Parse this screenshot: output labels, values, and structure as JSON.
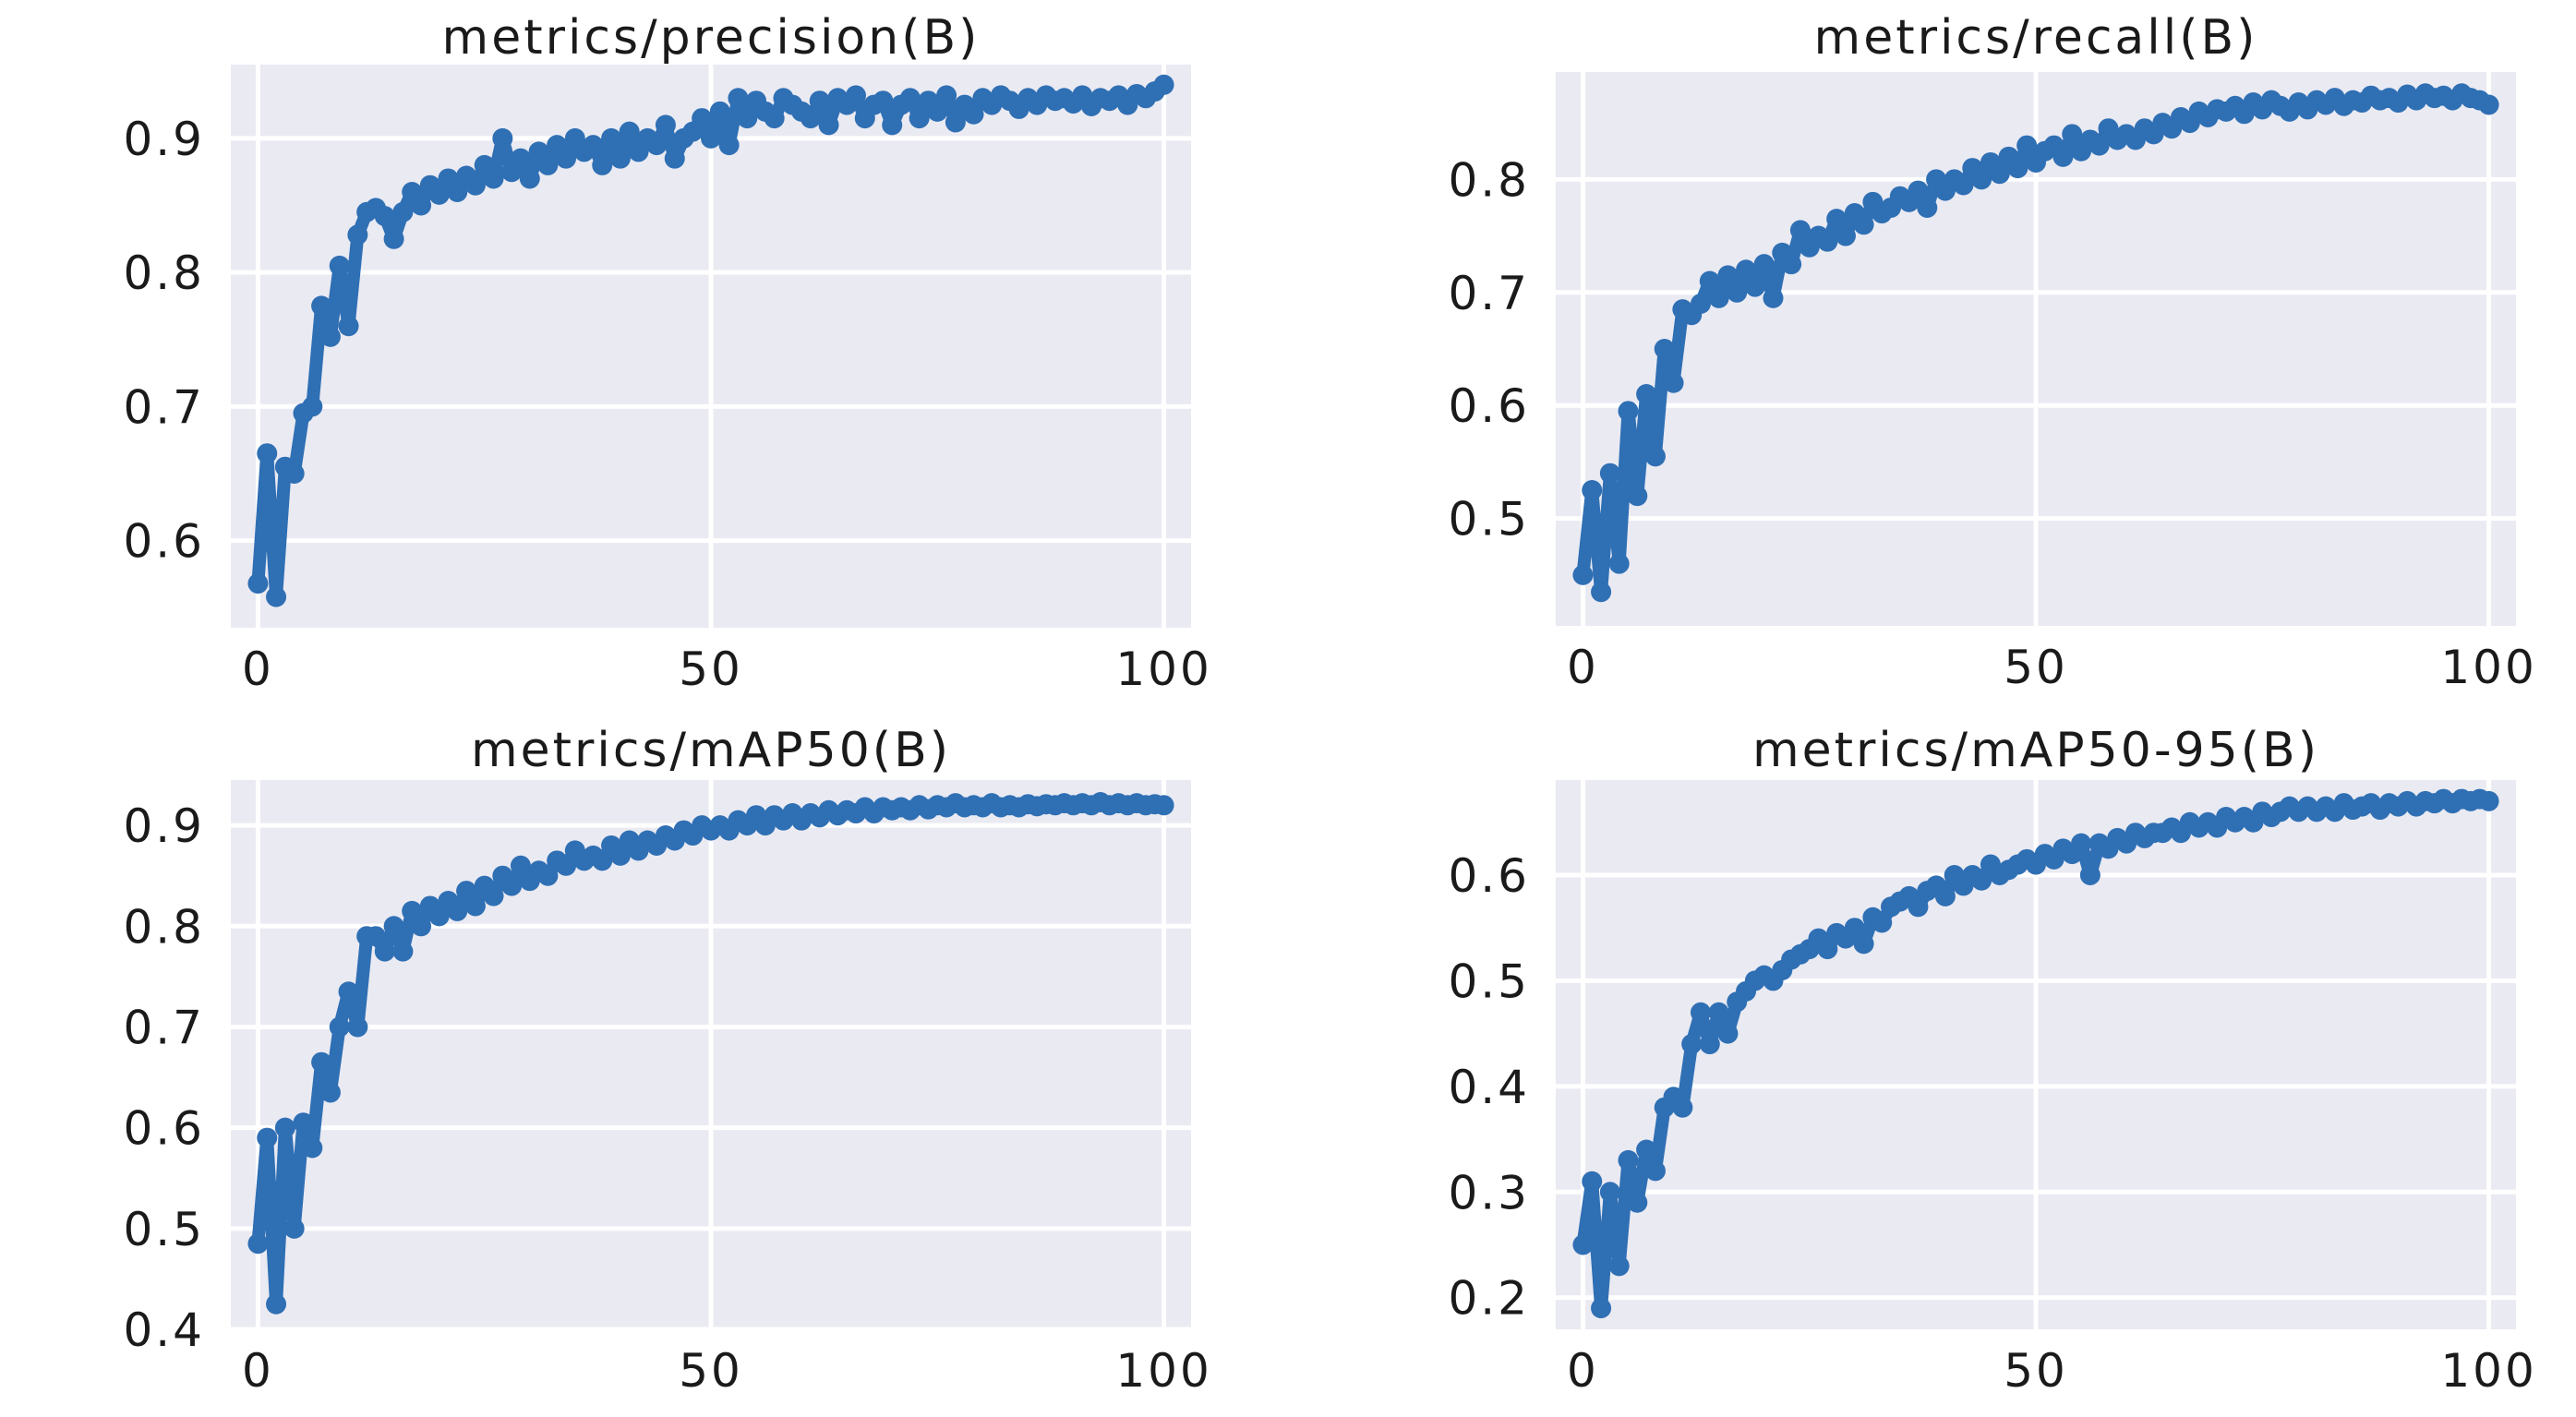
{
  "figure": {
    "background": "#ffffff",
    "plot_background": "#eaeaf2",
    "grid_color": "#ffffff",
    "series_color": "#2f6fb4"
  },
  "chart_data": [
    {
      "type": "line",
      "title": "metrics/precision(B)",
      "xlabel": "",
      "ylabel": "",
      "xlim": [
        -3,
        103
      ],
      "ylim": [
        0.535,
        0.955
      ],
      "xticks": [
        0,
        50,
        100
      ],
      "xtick_labels": [
        "0",
        "50",
        "100"
      ],
      "yticks": [
        0.6,
        0.7,
        0.8,
        0.9
      ],
      "ytick_labels": [
        "0.6",
        "0.7",
        "0.8",
        "0.9"
      ],
      "grid": true,
      "markers": true,
      "x": [
        0,
        1,
        2,
        3,
        4,
        5,
        6,
        7,
        8,
        9,
        10,
        11,
        12,
        13,
        14,
        15,
        16,
        17,
        18,
        19,
        20,
        21,
        22,
        23,
        24,
        25,
        26,
        27,
        28,
        29,
        30,
        31,
        32,
        33,
        34,
        35,
        36,
        37,
        38,
        39,
        40,
        41,
        42,
        43,
        44,
        45,
        46,
        47,
        48,
        49,
        50,
        51,
        52,
        53,
        54,
        55,
        56,
        57,
        58,
        59,
        60,
        61,
        62,
        63,
        64,
        65,
        66,
        67,
        68,
        69,
        70,
        71,
        72,
        73,
        74,
        75,
        76,
        77,
        78,
        79,
        80,
        81,
        82,
        83,
        84,
        85,
        86,
        87,
        88,
        89,
        90,
        91,
        92,
        93,
        94,
        95,
        96,
        97,
        98,
        99,
        100
      ],
      "y": [
        0.568,
        0.665,
        0.558,
        0.655,
        0.65,
        0.695,
        0.7,
        0.775,
        0.752,
        0.805,
        0.76,
        0.828,
        0.845,
        0.848,
        0.842,
        0.825,
        0.845,
        0.86,
        0.85,
        0.865,
        0.858,
        0.87,
        0.86,
        0.872,
        0.865,
        0.88,
        0.87,
        0.9,
        0.875,
        0.885,
        0.87,
        0.89,
        0.88,
        0.895,
        0.885,
        0.9,
        0.89,
        0.895,
        0.88,
        0.9,
        0.885,
        0.905,
        0.89,
        0.9,
        0.895,
        0.91,
        0.885,
        0.9,
        0.905,
        0.915,
        0.9,
        0.92,
        0.895,
        0.93,
        0.915,
        0.928,
        0.92,
        0.915,
        0.93,
        0.925,
        0.92,
        0.915,
        0.928,
        0.91,
        0.93,
        0.925,
        0.932,
        0.915,
        0.925,
        0.928,
        0.91,
        0.925,
        0.93,
        0.915,
        0.928,
        0.92,
        0.932,
        0.912,
        0.925,
        0.918,
        0.93,
        0.925,
        0.932,
        0.928,
        0.922,
        0.93,
        0.925,
        0.932,
        0.928,
        0.93,
        0.926,
        0.932,
        0.924,
        0.93,
        0.928,
        0.932,
        0.925,
        0.933,
        0.93,
        0.935,
        0.94
      ]
    },
    {
      "type": "line",
      "title": "metrics/recall(B)",
      "xlabel": "",
      "ylabel": "",
      "xlim": [
        -3,
        103
      ],
      "ylim": [
        0.405,
        0.895
      ],
      "xticks": [
        0,
        50,
        100
      ],
      "xtick_labels": [
        "0",
        "50",
        "100"
      ],
      "yticks": [
        0.5,
        0.6,
        0.7,
        0.8
      ],
      "ytick_labels": [
        "0.5",
        "0.6",
        "0.7",
        "0.8"
      ],
      "grid": true,
      "markers": true,
      "x": [
        0,
        1,
        2,
        3,
        4,
        5,
        6,
        7,
        8,
        9,
        10,
        11,
        12,
        13,
        14,
        15,
        16,
        17,
        18,
        19,
        20,
        21,
        22,
        23,
        24,
        25,
        26,
        27,
        28,
        29,
        30,
        31,
        32,
        33,
        34,
        35,
        36,
        37,
        38,
        39,
        40,
        41,
        42,
        43,
        44,
        45,
        46,
        47,
        48,
        49,
        50,
        51,
        52,
        53,
        54,
        55,
        56,
        57,
        58,
        59,
        60,
        61,
        62,
        63,
        64,
        65,
        66,
        67,
        68,
        69,
        70,
        71,
        72,
        73,
        74,
        75,
        76,
        77,
        78,
        79,
        80,
        81,
        82,
        83,
        84,
        85,
        86,
        87,
        88,
        89,
        90,
        91,
        92,
        93,
        94,
        95,
        96,
        97,
        98,
        99,
        100
      ],
      "y": [
        0.45,
        0.525,
        0.435,
        0.54,
        0.46,
        0.595,
        0.52,
        0.61,
        0.555,
        0.65,
        0.62,
        0.685,
        0.68,
        0.69,
        0.71,
        0.695,
        0.715,
        0.7,
        0.72,
        0.705,
        0.725,
        0.695,
        0.735,
        0.725,
        0.755,
        0.74,
        0.75,
        0.745,
        0.765,
        0.75,
        0.77,
        0.76,
        0.78,
        0.77,
        0.775,
        0.785,
        0.78,
        0.79,
        0.775,
        0.8,
        0.79,
        0.8,
        0.795,
        0.81,
        0.8,
        0.815,
        0.805,
        0.82,
        0.81,
        0.83,
        0.815,
        0.825,
        0.83,
        0.82,
        0.84,
        0.825,
        0.835,
        0.83,
        0.845,
        0.835,
        0.84,
        0.835,
        0.845,
        0.84,
        0.85,
        0.845,
        0.855,
        0.85,
        0.86,
        0.855,
        0.862,
        0.86,
        0.865,
        0.858,
        0.868,
        0.862,
        0.87,
        0.865,
        0.86,
        0.868,
        0.862,
        0.87,
        0.866,
        0.872,
        0.865,
        0.87,
        0.868,
        0.874,
        0.87,
        0.872,
        0.868,
        0.875,
        0.87,
        0.876,
        0.872,
        0.874,
        0.87,
        0.876,
        0.872,
        0.87,
        0.866
      ]
    },
    {
      "type": "line",
      "title": "metrics/mAP50(B)",
      "xlabel": "",
      "ylabel": "",
      "xlim": [
        -3,
        103
      ],
      "ylim": [
        0.4,
        0.945
      ],
      "xticks": [
        0,
        50,
        100
      ],
      "xtick_labels": [
        "0",
        "50",
        "100"
      ],
      "yticks": [
        0.4,
        0.5,
        0.6,
        0.7,
        0.8,
        0.9
      ],
      "ytick_labels": [
        "0.4",
        "0.5",
        "0.6",
        "0.7",
        "0.8",
        "0.9"
      ],
      "grid": true,
      "markers": true,
      "x": [
        0,
        1,
        2,
        3,
        4,
        5,
        6,
        7,
        8,
        9,
        10,
        11,
        12,
        13,
        14,
        15,
        16,
        17,
        18,
        19,
        20,
        21,
        22,
        23,
        24,
        25,
        26,
        27,
        28,
        29,
        30,
        31,
        32,
        33,
        34,
        35,
        36,
        37,
        38,
        39,
        40,
        41,
        42,
        43,
        44,
        45,
        46,
        47,
        48,
        49,
        50,
        51,
        52,
        53,
        54,
        55,
        56,
        57,
        58,
        59,
        60,
        61,
        62,
        63,
        64,
        65,
        66,
        67,
        68,
        69,
        70,
        71,
        72,
        73,
        74,
        75,
        76,
        77,
        78,
        79,
        80,
        81,
        82,
        83,
        84,
        85,
        86,
        87,
        88,
        89,
        90,
        91,
        92,
        93,
        94,
        95,
        96,
        97,
        98,
        99,
        100
      ],
      "y": [
        0.485,
        0.59,
        0.425,
        0.6,
        0.5,
        0.605,
        0.58,
        0.665,
        0.635,
        0.7,
        0.735,
        0.7,
        0.79,
        0.79,
        0.775,
        0.8,
        0.775,
        0.815,
        0.8,
        0.82,
        0.81,
        0.825,
        0.815,
        0.835,
        0.82,
        0.84,
        0.83,
        0.85,
        0.84,
        0.86,
        0.845,
        0.855,
        0.85,
        0.865,
        0.86,
        0.875,
        0.865,
        0.87,
        0.865,
        0.88,
        0.87,
        0.885,
        0.875,
        0.885,
        0.88,
        0.89,
        0.885,
        0.895,
        0.89,
        0.9,
        0.895,
        0.9,
        0.895,
        0.905,
        0.9,
        0.91,
        0.9,
        0.91,
        0.905,
        0.912,
        0.905,
        0.912,
        0.908,
        0.915,
        0.91,
        0.915,
        0.912,
        0.918,
        0.912,
        0.918,
        0.915,
        0.918,
        0.915,
        0.92,
        0.916,
        0.92,
        0.918,
        0.922,
        0.918,
        0.92,
        0.918,
        0.922,
        0.918,
        0.92,
        0.918,
        0.921,
        0.919,
        0.921,
        0.92,
        0.922,
        0.92,
        0.922,
        0.92,
        0.923,
        0.92,
        0.922,
        0.92,
        0.922,
        0.92,
        0.921,
        0.92
      ]
    },
    {
      "type": "line",
      "title": "metrics/mAP50-95(B)",
      "xlabel": "",
      "ylabel": "",
      "xlim": [
        -3,
        103
      ],
      "ylim": [
        0.17,
        0.69
      ],
      "xticks": [
        0,
        50,
        100
      ],
      "xtick_labels": [
        "0",
        "50",
        "100"
      ],
      "yticks": [
        0.2,
        0.3,
        0.4,
        0.5,
        0.6
      ],
      "ytick_labels": [
        "0.2",
        "0.3",
        "0.4",
        "0.5",
        "0.6"
      ],
      "grid": true,
      "markers": true,
      "x": [
        0,
        1,
        2,
        3,
        4,
        5,
        6,
        7,
        8,
        9,
        10,
        11,
        12,
        13,
        14,
        15,
        16,
        17,
        18,
        19,
        20,
        21,
        22,
        23,
        24,
        25,
        26,
        27,
        28,
        29,
        30,
        31,
        32,
        33,
        34,
        35,
        36,
        37,
        38,
        39,
        40,
        41,
        42,
        43,
        44,
        45,
        46,
        47,
        48,
        49,
        50,
        51,
        52,
        53,
        54,
        55,
        56,
        57,
        58,
        59,
        60,
        61,
        62,
        63,
        64,
        65,
        66,
        67,
        68,
        69,
        70,
        71,
        72,
        73,
        74,
        75,
        76,
        77,
        78,
        79,
        80,
        81,
        82,
        83,
        84,
        85,
        86,
        87,
        88,
        89,
        90,
        91,
        92,
        93,
        94,
        95,
        96,
        97,
        98,
        99,
        100
      ],
      "y": [
        0.25,
        0.31,
        0.19,
        0.3,
        0.23,
        0.33,
        0.29,
        0.34,
        0.32,
        0.38,
        0.39,
        0.38,
        0.44,
        0.47,
        0.44,
        0.47,
        0.45,
        0.48,
        0.49,
        0.5,
        0.505,
        0.5,
        0.51,
        0.52,
        0.525,
        0.53,
        0.54,
        0.53,
        0.545,
        0.54,
        0.55,
        0.535,
        0.56,
        0.555,
        0.57,
        0.575,
        0.58,
        0.57,
        0.585,
        0.59,
        0.58,
        0.6,
        0.59,
        0.6,
        0.595,
        0.61,
        0.6,
        0.605,
        0.61,
        0.615,
        0.61,
        0.62,
        0.615,
        0.625,
        0.62,
        0.63,
        0.6,
        0.63,
        0.625,
        0.635,
        0.63,
        0.64,
        0.635,
        0.64,
        0.64,
        0.645,
        0.64,
        0.65,
        0.645,
        0.65,
        0.645,
        0.655,
        0.65,
        0.655,
        0.65,
        0.66,
        0.655,
        0.66,
        0.665,
        0.66,
        0.665,
        0.66,
        0.665,
        0.66,
        0.668,
        0.662,
        0.665,
        0.668,
        0.662,
        0.668,
        0.665,
        0.67,
        0.665,
        0.67,
        0.668,
        0.672,
        0.668,
        0.672,
        0.67,
        0.672,
        0.67
      ]
    }
  ]
}
